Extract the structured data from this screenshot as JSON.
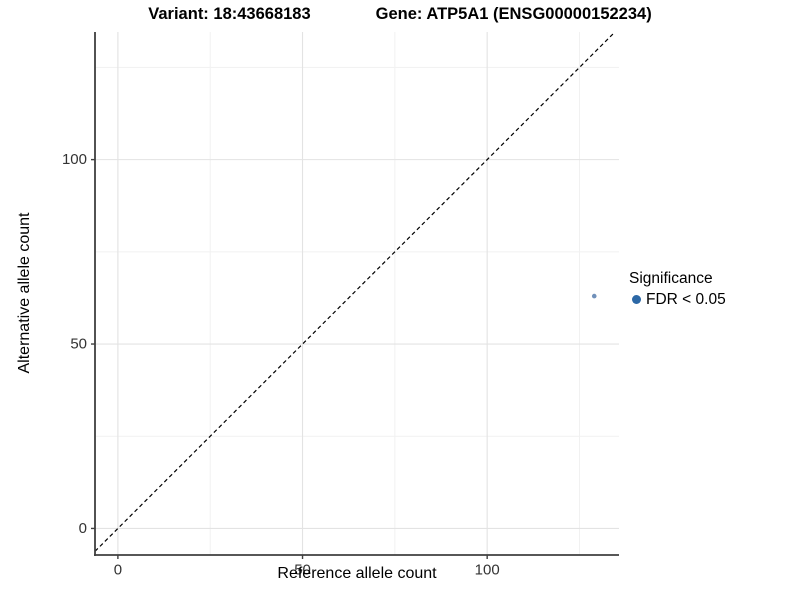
{
  "chart_data": {
    "type": "scatter",
    "title_left": "Variant: 18:43668183",
    "title_right": "Gene: ATP5A1 (ENSG00000152234)",
    "xlabel": "Reference allele count",
    "ylabel": "Alternative allele count",
    "xlim": [
      -6.2,
      135.7
    ],
    "ylim": [
      -7.2,
      134.6
    ],
    "x_major_ticks": [
      0,
      50,
      100
    ],
    "y_major_ticks": [
      0,
      50,
      100
    ],
    "x_minor_ticks": [
      25,
      75,
      125
    ],
    "y_minor_ticks": [
      25,
      75,
      125
    ],
    "grid": {
      "major_color": "#e3e3e3",
      "minor_color": "#f1f1f1",
      "on": true
    },
    "axis_color": "#3f3f3f",
    "identity_line": {
      "style": "dashed",
      "color": "#000000",
      "from": 0,
      "to": 134.6
    },
    "points": [
      {
        "x": 129,
        "y": 63,
        "significance": "FDR < 0.05"
      }
    ],
    "point_color": "#7191ba",
    "legend": {
      "position": "right",
      "title": "Significance",
      "entries": [
        {
          "label": "FDR < 0.05",
          "color": "#2c68a6"
        }
      ]
    }
  }
}
